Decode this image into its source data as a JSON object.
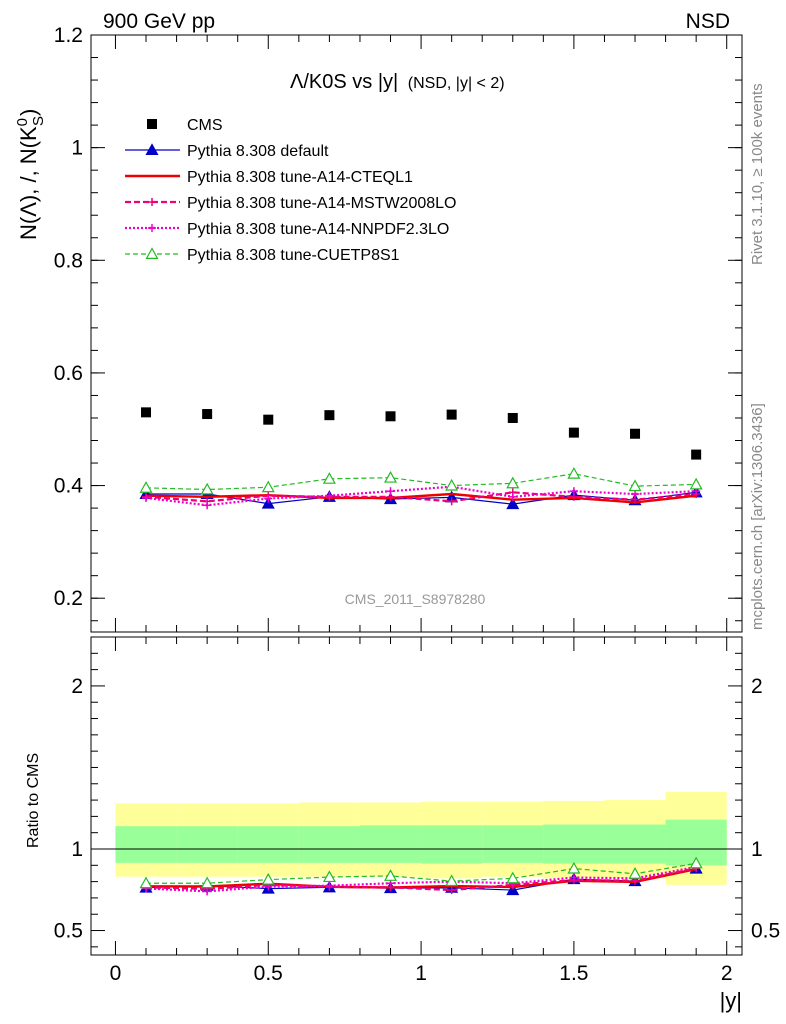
{
  "header": {
    "left": "900 GeV pp",
    "right": "NSD"
  },
  "side": {
    "rivet": "Rivet 3.1.10, ≥ 100k events",
    "mcplots": "mcplots.cern.ch [arXiv:1306.3436]"
  },
  "watermark": "CMS_2011_S8978280",
  "chart_data": [
    {
      "type": "scatter",
      "title": "Λ/K0S vs |y|",
      "title_sub": "(NSD, |y| < 2)",
      "ylabel": "N(Λ), /, N(K",
      "ylabel_sup": "0",
      "ylabel_sub": "S",
      "ylabel_end": ")",
      "xlabel": "|y|",
      "xlim": [
        -0.08,
        2.05
      ],
      "ylim": [
        0.14,
        1.2
      ],
      "yticks": [
        "0.2",
        "0.4",
        "0.6",
        "0.8",
        "1",
        "1.2"
      ],
      "x": [
        0.1,
        0.3,
        0.5,
        0.7,
        0.9,
        1.1,
        1.3,
        1.5,
        1.7,
        1.9
      ],
      "series": [
        {
          "name": "CMS",
          "color": "#000000",
          "values": [
            0.53,
            0.527,
            0.517,
            0.525,
            0.523,
            0.526,
            0.52,
            0.494,
            0.492,
            0.455
          ]
        },
        {
          "name": "Pythia 8.308 default",
          "color": "#0000c8",
          "values": [
            0.385,
            0.385,
            0.368,
            0.38,
            0.376,
            0.379,
            0.367,
            0.383,
            0.374,
            0.388
          ]
        },
        {
          "name": "Pythia 8.308 tune-A14-CTEQL1",
          "color": "#ee0000",
          "values": [
            0.382,
            0.38,
            0.383,
            0.378,
            0.378,
            0.385,
            0.375,
            0.378,
            0.37,
            0.382
          ]
        },
        {
          "name": "Pythia 8.308 tune-A14-MSTW2008LO",
          "color": "#ee0077",
          "values": [
            0.38,
            0.372,
            0.382,
            0.38,
            0.38,
            0.372,
            0.388,
            0.38,
            0.375,
            0.385
          ]
        },
        {
          "name": "Pythia 8.308 tune-A14-NNPDF2.3LO",
          "color": "#ee00cc",
          "values": [
            0.378,
            0.365,
            0.377,
            0.382,
            0.39,
            0.398,
            0.38,
            0.39,
            0.385,
            0.39
          ]
        },
        {
          "name": "Pythia 8.308 tune-CUETP8S1",
          "color": "#22bb22",
          "values": [
            0.396,
            0.393,
            0.397,
            0.412,
            0.414,
            0.4,
            0.404,
            0.421,
            0.399,
            0.402
          ]
        }
      ]
    },
    {
      "type": "line",
      "ylabel": "Ratio to CMS",
      "xlabel": "|y|",
      "xlim": [
        -0.08,
        2.05
      ],
      "ylim": [
        0.35,
        2.3
      ],
      "yticks": [
        "0.5",
        "1",
        "2"
      ],
      "xticks": [
        "0",
        "0.5",
        "1",
        "1.5",
        "2"
      ],
      "x": [
        0.1,
        0.3,
        0.5,
        0.7,
        0.9,
        1.1,
        1.3,
        1.5,
        1.7,
        1.9
      ],
      "band_edges": [
        0.0,
        0.2,
        0.4,
        0.6,
        0.8,
        1.0,
        1.2,
        1.4,
        1.6,
        1.8,
        2.0
      ],
      "band_inner": {
        "color": "#99ff99",
        "lo": [
          0.915,
          0.915,
          0.915,
          0.915,
          0.915,
          0.91,
          0.915,
          0.91,
          0.91,
          0.9
        ],
        "hi": [
          1.14,
          1.14,
          1.14,
          1.14,
          1.145,
          1.145,
          1.145,
          1.15,
          1.15,
          1.18
        ]
      },
      "band_outer": {
        "color": "#ffff99",
        "lo": [
          0.83,
          0.83,
          0.83,
          0.83,
          0.83,
          0.82,
          0.83,
          0.82,
          0.82,
          0.78
        ],
        "hi": [
          1.28,
          1.28,
          1.28,
          1.285,
          1.285,
          1.29,
          1.29,
          1.295,
          1.3,
          1.35
        ]
      },
      "series": [
        {
          "name": "Pythia 8.308 default",
          "values": [
            0.763,
            0.775,
            0.757,
            0.765,
            0.76,
            0.762,
            0.748,
            0.815,
            0.803,
            0.88
          ]
        },
        {
          "name": "Pythia 8.308 tune-A14-CTEQL1",
          "values": [
            0.771,
            0.77,
            0.787,
            0.768,
            0.764,
            0.773,
            0.767,
            0.805,
            0.798,
            0.877
          ]
        },
        {
          "name": "Pythia 8.308 tune-A14-MSTW2008LO",
          "values": [
            0.765,
            0.755,
            0.78,
            0.768,
            0.765,
            0.748,
            0.78,
            0.81,
            0.805,
            0.882
          ]
        },
        {
          "name": "Pythia 8.308 tune-A14-NNPDF2.3LO",
          "values": [
            0.758,
            0.74,
            0.77,
            0.775,
            0.79,
            0.8,
            0.79,
            0.825,
            0.82,
            0.89
          ]
        },
        {
          "name": "Pythia 8.308 tune-CUETP8S1",
          "values": [
            0.79,
            0.79,
            0.812,
            0.828,
            0.835,
            0.803,
            0.82,
            0.88,
            0.848,
            0.912
          ]
        }
      ]
    }
  ],
  "colors": {
    "default": "#0000c8",
    "cteql1": "#ee0000",
    "mstw": "#ee0077",
    "nnpdf": "#ee00cc",
    "cuetp": "#22bb22",
    "data": "#000000"
  }
}
